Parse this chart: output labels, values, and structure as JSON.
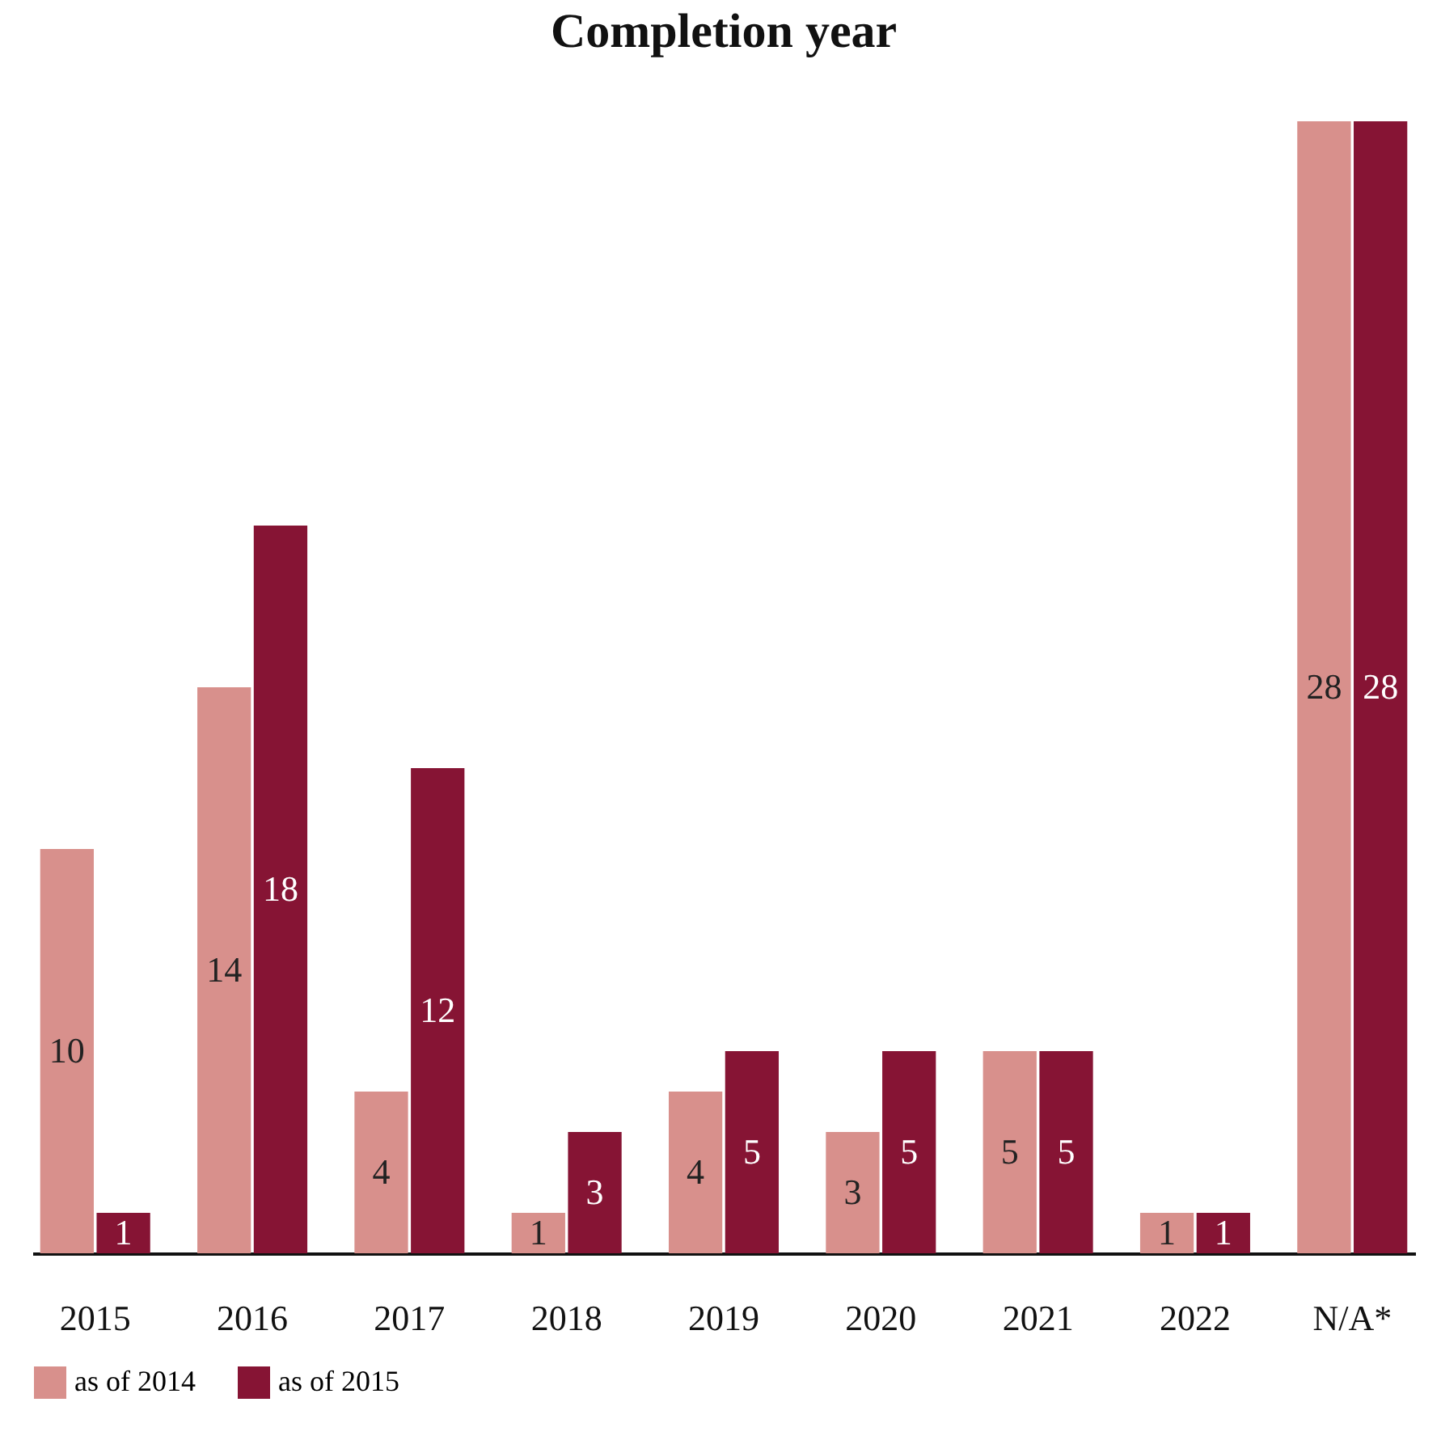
{
  "chart_data": {
    "type": "bar",
    "title": "Completion year",
    "categories": [
      "2015",
      "2016",
      "2017",
      "2018",
      "2019",
      "2020",
      "2021",
      "2022",
      "N/A*"
    ],
    "series": [
      {
        "name": "as of 2014",
        "color": "#d8908c",
        "values": [
          10,
          14,
          4,
          1,
          4,
          3,
          5,
          1,
          28
        ]
      },
      {
        "name": "as of 2015",
        "color": "#861434",
        "values": [
          1,
          18,
          12,
          3,
          5,
          5,
          5,
          1,
          28
        ]
      }
    ],
    "data_labels": true,
    "legend": "bottom",
    "grid": false
  }
}
